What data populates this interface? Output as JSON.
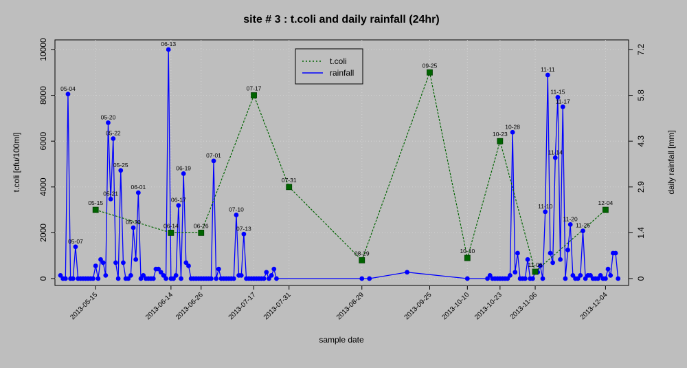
{
  "chart_data": {
    "type": "line",
    "title": "site # 3 : t.coli and daily rainfall (24hr)",
    "xlabel": "sample date",
    "ylabel_left": "t.coli [cfu/100ml]",
    "ylabel_right": "daily rainfall [mm]",
    "ylim_left": [
      0,
      10000
    ],
    "ylim_right": [
      0,
      7.2
    ],
    "x_range": [
      "2013-05-01",
      "2013-12-11"
    ],
    "left_ticks": [
      "0",
      "2000",
      "4000",
      "6000",
      "8000",
      "10000"
    ],
    "right_ticks": [
      "0",
      "1.4",
      "2.9",
      "4.3",
      "5.8",
      "7.2"
    ],
    "right_tick_values": [
      0,
      1.44,
      2.88,
      4.32,
      5.76,
      7.2
    ],
    "x_ticks": [
      "2013-05-15",
      "2013-06-14",
      "2013-06-26",
      "2013-07-17",
      "2013-07-31",
      "2013-08-29",
      "2013-09-25",
      "2013-10-10",
      "2013-10-23",
      "2013-11-06",
      "2013-12-04"
    ],
    "grid": true,
    "legend_position": "top-center",
    "legend": [
      {
        "label": "t.coli",
        "style": "dotted",
        "color": "#006400"
      },
      {
        "label": "rainfall",
        "style": "solid",
        "color": "#0000ff"
      }
    ],
    "series": [
      {
        "name": "t.coli",
        "color": "#006400",
        "marker_color": "#006400",
        "points": [
          {
            "date": "2013-05-15",
            "label": "05-15",
            "value": 3000
          },
          {
            "date": "2013-06-14",
            "label": "06-14",
            "value": 2000
          },
          {
            "date": "2013-06-26",
            "label": "06-26",
            "value": 2000
          },
          {
            "date": "2013-07-17",
            "label": "07-17",
            "value": 8000
          },
          {
            "date": "2013-07-31",
            "label": "07-31",
            "value": 4000
          },
          {
            "date": "2013-08-29",
            "label": "08-29",
            "value": 800
          },
          {
            "date": "2013-09-25",
            "label": "09-25",
            "value": 9000
          },
          {
            "date": "2013-10-10",
            "label": "10-10",
            "value": 900
          },
          {
            "date": "2013-10-23",
            "label": "10-23",
            "value": 6000
          },
          {
            "date": "2013-11-06",
            "label": "11-06",
            "value": 300
          },
          {
            "date": "2013-12-04",
            "label": "12-04",
            "value": 3000
          }
        ]
      },
      {
        "name": "rainfall",
        "color": "#0000ff",
        "marker_color": "#0000ff",
        "points": [
          {
            "date": "2013-05-01",
            "value": 0.1
          },
          {
            "date": "2013-05-02",
            "value": 0
          },
          {
            "date": "2013-05-03",
            "value": 0
          },
          {
            "date": "2013-05-04",
            "value": 5.8,
            "label": "05-04"
          },
          {
            "date": "2013-05-05",
            "value": 0
          },
          {
            "date": "2013-05-06",
            "value": 0
          },
          {
            "date": "2013-05-07",
            "value": 1.0,
            "label": "05-07"
          },
          {
            "date": "2013-05-08",
            "value": 0
          },
          {
            "date": "2013-05-09",
            "value": 0
          },
          {
            "date": "2013-05-10",
            "value": 0
          },
          {
            "date": "2013-05-11",
            "value": 0
          },
          {
            "date": "2013-05-12",
            "value": 0
          },
          {
            "date": "2013-05-13",
            "value": 0
          },
          {
            "date": "2013-05-14",
            "value": 0
          },
          {
            "date": "2013-05-15",
            "value": 0.4
          },
          {
            "date": "2013-05-16",
            "value": 0
          },
          {
            "date": "2013-05-17",
            "value": 0.6
          },
          {
            "date": "2013-05-18",
            "value": 0.5
          },
          {
            "date": "2013-05-19",
            "value": 0.1
          },
          {
            "date": "2013-05-20",
            "value": 4.9,
            "label": "05-20"
          },
          {
            "date": "2013-05-21",
            "value": 2.5,
            "label": "05-21"
          },
          {
            "date": "2013-05-22",
            "value": 4.4,
            "label": "05-22"
          },
          {
            "date": "2013-05-23",
            "value": 0.5
          },
          {
            "date": "2013-05-24",
            "value": 0
          },
          {
            "date": "2013-05-25",
            "value": 3.4,
            "label": "05-25"
          },
          {
            "date": "2013-05-26",
            "value": 0.5
          },
          {
            "date": "2013-05-27",
            "value": 0
          },
          {
            "date": "2013-05-28",
            "value": 0
          },
          {
            "date": "2013-05-29",
            "value": 0.1
          },
          {
            "date": "2013-05-30",
            "value": 1.6,
            "label": "05-30"
          },
          {
            "date": "2013-05-31",
            "value": 0.6
          },
          {
            "date": "2013-06-01",
            "value": 2.7,
            "label": "06-01"
          },
          {
            "date": "2013-06-02",
            "value": 0
          },
          {
            "date": "2013-06-03",
            "value": 0.1
          },
          {
            "date": "2013-06-04",
            "value": 0
          },
          {
            "date": "2013-06-05",
            "value": 0
          },
          {
            "date": "2013-06-06",
            "value": 0
          },
          {
            "date": "2013-06-07",
            "value": 0
          },
          {
            "date": "2013-06-08",
            "value": 0.3
          },
          {
            "date": "2013-06-09",
            "value": 0.3
          },
          {
            "date": "2013-06-10",
            "value": 0.2
          },
          {
            "date": "2013-06-11",
            "value": 0.1
          },
          {
            "date": "2013-06-12",
            "value": 0
          },
          {
            "date": "2013-06-13",
            "value": 7.2,
            "label": "06-13"
          },
          {
            "date": "2013-06-14",
            "value": 0
          },
          {
            "date": "2013-06-15",
            "value": 0
          },
          {
            "date": "2013-06-16",
            "value": 0.1
          },
          {
            "date": "2013-06-17",
            "value": 2.3,
            "label": "06-17"
          },
          {
            "date": "2013-06-18",
            "value": 0
          },
          {
            "date": "2013-06-19",
            "value": 3.3,
            "label": "06-19"
          },
          {
            "date": "2013-06-20",
            "value": 0.5
          },
          {
            "date": "2013-06-21",
            "value": 0.4
          },
          {
            "date": "2013-06-22",
            "value": 0
          },
          {
            "date": "2013-06-23",
            "value": 0
          },
          {
            "date": "2013-06-24",
            "value": 0
          },
          {
            "date": "2013-06-25",
            "value": 0
          },
          {
            "date": "2013-06-26",
            "value": 0
          },
          {
            "date": "2013-06-27",
            "value": 0
          },
          {
            "date": "2013-06-28",
            "value": 0
          },
          {
            "date": "2013-06-29",
            "value": 0
          },
          {
            "date": "2013-06-30",
            "value": 0
          },
          {
            "date": "2013-07-01",
            "value": 3.7,
            "label": "07-01"
          },
          {
            "date": "2013-07-02",
            "value": 0
          },
          {
            "date": "2013-07-03",
            "value": 0.3
          },
          {
            "date": "2013-07-04",
            "value": 0
          },
          {
            "date": "2013-07-05",
            "value": 0
          },
          {
            "date": "2013-07-06",
            "value": 0
          },
          {
            "date": "2013-07-07",
            "value": 0
          },
          {
            "date": "2013-07-08",
            "value": 0
          },
          {
            "date": "2013-07-09",
            "value": 0
          },
          {
            "date": "2013-07-10",
            "value": 2.0,
            "label": "07-10"
          },
          {
            "date": "2013-07-11",
            "value": 0.1
          },
          {
            "date": "2013-07-12",
            "value": 0.1
          },
          {
            "date": "2013-07-13",
            "value": 1.4,
            "label": "07-13"
          },
          {
            "date": "2013-07-14",
            "value": 0
          },
          {
            "date": "2013-07-15",
            "value": 0
          },
          {
            "date": "2013-07-16",
            "value": 0
          },
          {
            "date": "2013-07-17",
            "value": 0
          },
          {
            "date": "2013-07-18",
            "value": 0
          },
          {
            "date": "2013-07-19",
            "value": 0
          },
          {
            "date": "2013-07-20",
            "value": 0
          },
          {
            "date": "2013-07-21",
            "value": 0
          },
          {
            "date": "2013-07-22",
            "value": 0.2
          },
          {
            "date": "2013-07-23",
            "value": 0
          },
          {
            "date": "2013-07-24",
            "value": 0.1
          },
          {
            "date": "2013-07-25",
            "value": 0.3
          },
          {
            "date": "2013-07-26",
            "value": 0
          },
          {
            "date": "2013-08-29",
            "value": 0
          },
          {
            "date": "2013-09-01",
            "value": 0
          },
          {
            "date": "2013-09-16",
            "value": 0.2
          },
          {
            "date": "2013-10-10",
            "value": 0
          },
          {
            "date": "2013-10-18",
            "value": 0
          },
          {
            "date": "2013-10-19",
            "value": 0.1
          },
          {
            "date": "2013-10-20",
            "value": 0
          },
          {
            "date": "2013-10-21",
            "value": 0
          },
          {
            "date": "2013-10-22",
            "value": 0
          },
          {
            "date": "2013-10-23",
            "value": 0
          },
          {
            "date": "2013-10-24",
            "value": 0
          },
          {
            "date": "2013-10-25",
            "value": 0
          },
          {
            "date": "2013-10-26",
            "value": 0
          },
          {
            "date": "2013-10-27",
            "value": 0.1
          },
          {
            "date": "2013-10-28",
            "value": 4.6,
            "label": "10-28"
          },
          {
            "date": "2013-10-29",
            "value": 0.2
          },
          {
            "date": "2013-10-30",
            "value": 0.8
          },
          {
            "date": "2013-10-31",
            "value": 0
          },
          {
            "date": "2013-11-01",
            "value": 0
          },
          {
            "date": "2013-11-02",
            "value": 0
          },
          {
            "date": "2013-11-03",
            "value": 0.6
          },
          {
            "date": "2013-11-04",
            "value": 0
          },
          {
            "date": "2013-11-05",
            "value": 0
          },
          {
            "date": "2013-11-06",
            "value": 0.2
          },
          {
            "date": "2013-11-07",
            "value": 0.2
          },
          {
            "date": "2013-11-08",
            "value": 0.4
          },
          {
            "date": "2013-11-09",
            "value": 0
          },
          {
            "date": "2013-11-10",
            "value": 2.1,
            "label": "11-10"
          },
          {
            "date": "2013-11-11",
            "value": 6.4,
            "label": "11-11"
          },
          {
            "date": "2013-11-12",
            "value": 0.8
          },
          {
            "date": "2013-11-13",
            "value": 0.5
          },
          {
            "date": "2013-11-14",
            "value": 3.8,
            "label": "11-14"
          },
          {
            "date": "2013-11-15",
            "value": 5.7,
            "label": "11-15"
          },
          {
            "date": "2013-11-16",
            "value": 0.6
          },
          {
            "date": "2013-11-17",
            "value": 5.4,
            "label": "11-17"
          },
          {
            "date": "2013-11-18",
            "value": 0
          },
          {
            "date": "2013-11-19",
            "value": 0.9
          },
          {
            "date": "2013-11-20",
            "value": 1.7,
            "label": "11-20"
          },
          {
            "date": "2013-11-21",
            "value": 0.1
          },
          {
            "date": "2013-11-22",
            "value": 0
          },
          {
            "date": "2013-11-23",
            "value": 0
          },
          {
            "date": "2013-11-24",
            "value": 0.1
          },
          {
            "date": "2013-11-25",
            "value": 1.5,
            "label": "11-25"
          },
          {
            "date": "2013-11-26",
            "value": 0
          },
          {
            "date": "2013-11-27",
            "value": 0.1
          },
          {
            "date": "2013-11-28",
            "value": 0.1
          },
          {
            "date": "2013-11-29",
            "value": 0
          },
          {
            "date": "2013-11-30",
            "value": 0
          },
          {
            "date": "2013-12-01",
            "value": 0
          },
          {
            "date": "2013-12-02",
            "value": 0.1
          },
          {
            "date": "2013-12-03",
            "value": 0
          },
          {
            "date": "2013-12-04",
            "value": 0
          },
          {
            "date": "2013-12-05",
            "value": 0.3
          },
          {
            "date": "2013-12-06",
            "value": 0.1
          },
          {
            "date": "2013-12-07",
            "value": 0.8
          },
          {
            "date": "2013-12-08",
            "value": 0.8
          },
          {
            "date": "2013-12-09",
            "value": 0
          }
        ]
      }
    ]
  }
}
